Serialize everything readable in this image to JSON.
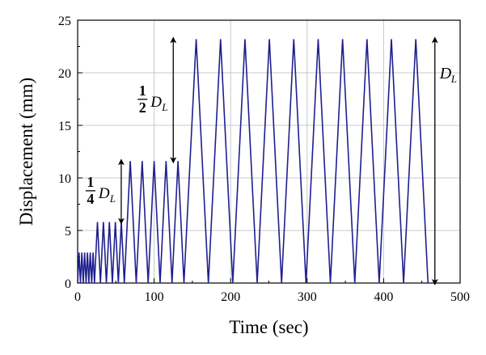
{
  "chart_data": {
    "type": "line",
    "xlabel": "Time (sec)",
    "ylabel": "Displacement (mm)",
    "xlim": [
      0,
      500
    ],
    "ylim": [
      0,
      25
    ],
    "x_ticks": [
      0,
      100,
      200,
      300,
      400,
      500
    ],
    "y_ticks": [
      0,
      5,
      10,
      15,
      20,
      25
    ],
    "grid": true,
    "line_color": "#1f1f8f",
    "stages": [
      {
        "amplitude": 2.9,
        "cycles": 6,
        "period": 3.67,
        "start": 0
      },
      {
        "amplitude": 5.8,
        "cycles": 5,
        "period": 7.8,
        "start": 22
      },
      {
        "amplitude": 11.6,
        "cycles": 5,
        "period": 15.6,
        "start": 61
      },
      {
        "amplitude": 23.2,
        "cycles": 10,
        "period": 31.9,
        "start": 139
      }
    ],
    "annotations": [
      {
        "frac_num": "1",
        "frac_den": "4",
        "symbol": "D",
        "sub": "L",
        "x": 57,
        "y_from": 5.8,
        "y_to": 11.6
      },
      {
        "frac_num": "1",
        "frac_den": "2",
        "symbol": "D",
        "sub": "L",
        "x": 125,
        "y_from": 11.6,
        "y_to": 23.2
      },
      {
        "frac_num": "",
        "frac_den": "",
        "symbol": "D",
        "sub": "L",
        "x": 467,
        "y_from": 0,
        "y_to": 23.2
      }
    ]
  }
}
